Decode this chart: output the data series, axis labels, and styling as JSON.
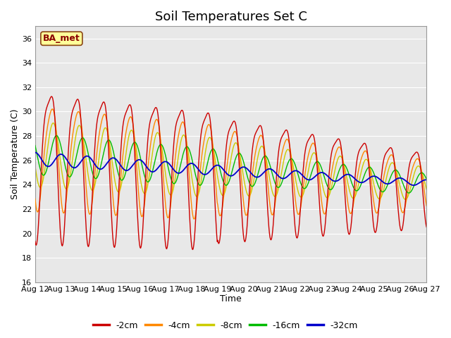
{
  "title": "Soil Temperatures Set C",
  "xlabel": "Time",
  "ylabel": "Soil Temperature (C)",
  "ylim": [
    16,
    37
  ],
  "annotation_label": "BA_met",
  "series_labels": [
    "-2cm",
    "-4cm",
    "-8cm",
    "-16cm",
    "-32cm"
  ],
  "series_colors": [
    "#cc0000",
    "#ff8800",
    "#cccc00",
    "#00bb00",
    "#0000cc"
  ],
  "xtick_labels": [
    "Aug 12",
    "Aug 13",
    "Aug 14",
    "Aug 15",
    "Aug 16",
    "Aug 17",
    "Aug 18",
    "Aug 19",
    "Aug 20",
    "Aug 21",
    "Aug 22",
    "Aug 23",
    "Aug 24",
    "Aug 25",
    "Aug 26",
    "Aug 27"
  ],
  "ytick_values": [
    16,
    18,
    20,
    22,
    24,
    26,
    28,
    30,
    32,
    34,
    36
  ],
  "plot_bg_color": "#e8e8e8",
  "grid_color": "#ffffff",
  "title_fontsize": 13,
  "label_fontsize": 9,
  "tick_fontsize": 8,
  "legend_fontsize": 9
}
